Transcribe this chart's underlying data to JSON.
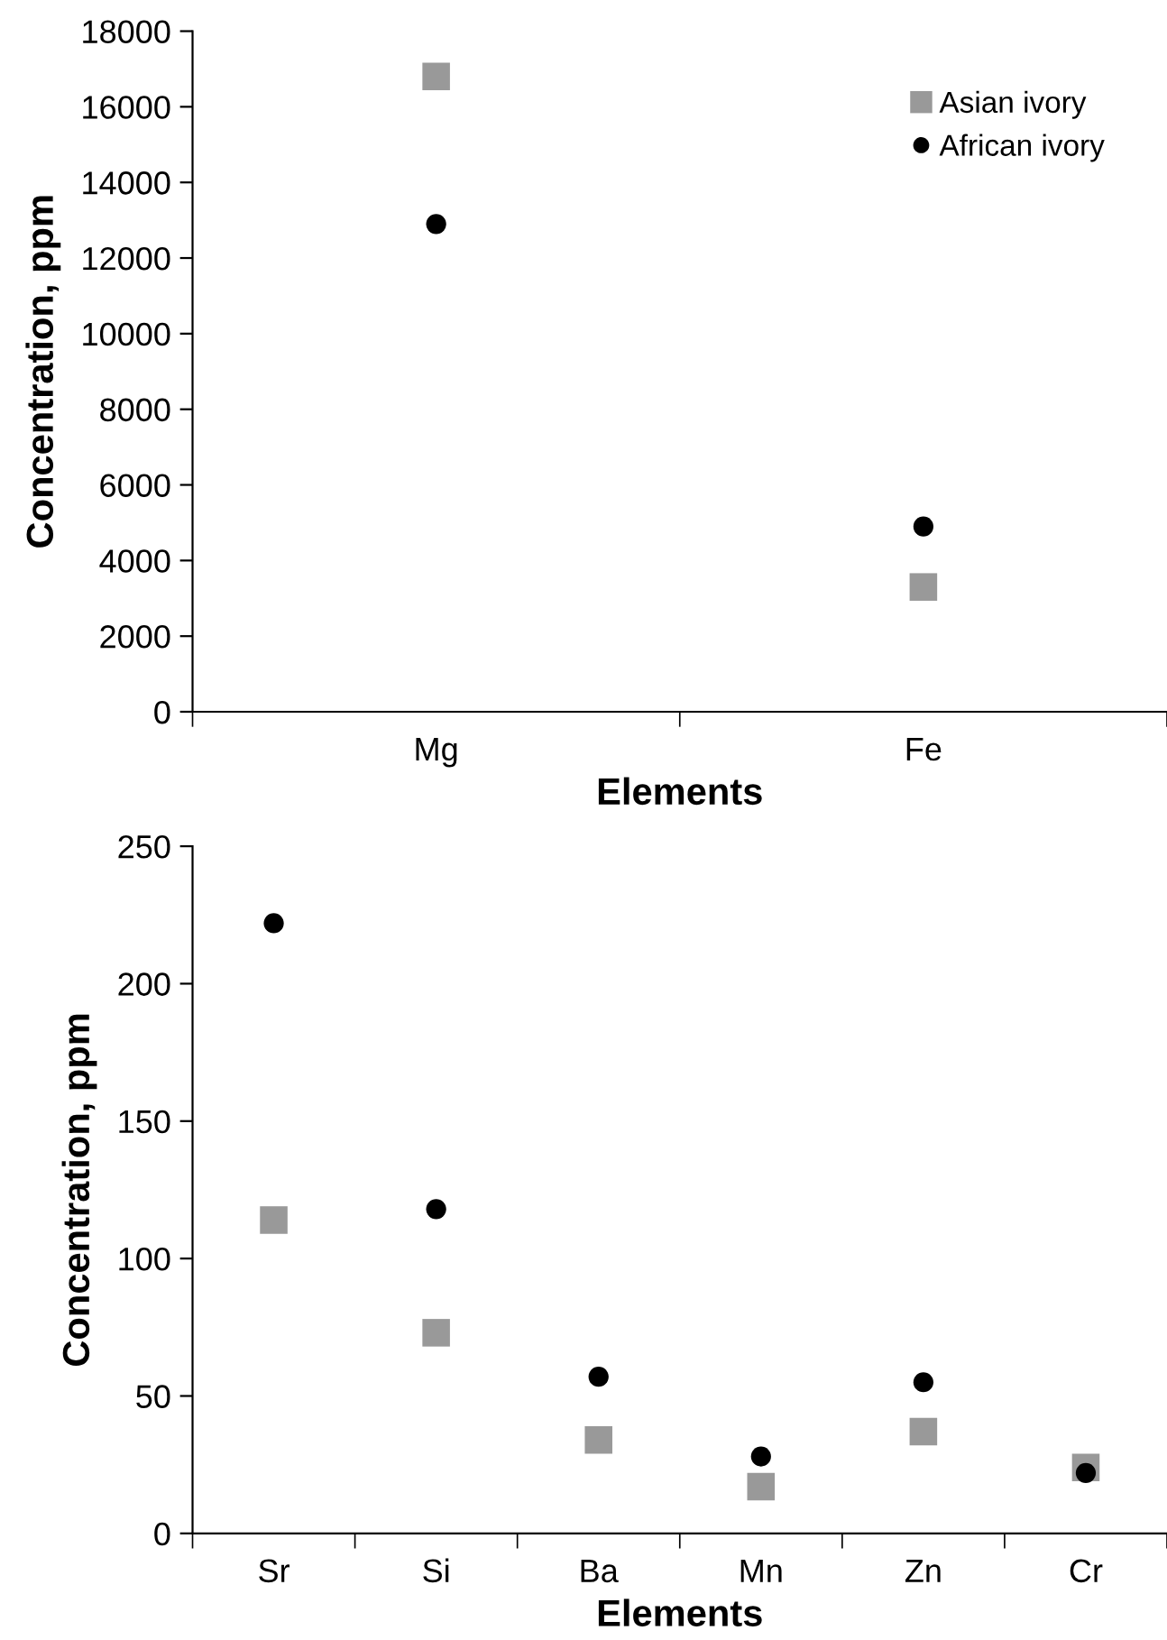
{
  "chart_data": [
    {
      "type": "scatter",
      "xlabel": "Elements",
      "ylabel": "Concentration, ppm",
      "categories": [
        "Mg",
        "Fe"
      ],
      "ylim": [
        0,
        18000
      ],
      "yticks": [
        0,
        2000,
        4000,
        6000,
        8000,
        10000,
        12000,
        14000,
        16000,
        18000
      ],
      "grid": false,
      "legend": "top right",
      "series": [
        {
          "name": "Asian ivory",
          "color": "#999999",
          "marker": "square",
          "values": [
            16800,
            3300
          ]
        },
        {
          "name": "African ivory",
          "color": "#000000",
          "marker": "circle",
          "values": [
            12900,
            4900
          ]
        }
      ]
    },
    {
      "type": "scatter",
      "xlabel": "Elements",
      "ylabel": "Concentration, ppm",
      "categories": [
        "Sr",
        "Si",
        "Ba",
        "Mn",
        "Zn",
        "Cr"
      ],
      "ylim": [
        0,
        250
      ],
      "yticks": [
        0,
        50,
        100,
        150,
        200,
        250
      ],
      "grid": false,
      "series": [
        {
          "color": "#999999",
          "marker": "square",
          "values": [
            114,
            73,
            34,
            17,
            37,
            24
          ]
        },
        {
          "color": "#000000",
          "marker": "circle",
          "values": [
            222,
            118,
            57,
            28,
            55,
            22
          ]
        }
      ]
    }
  ]
}
